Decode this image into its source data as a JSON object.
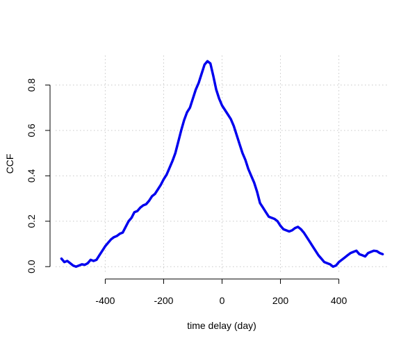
{
  "chart_data": {
    "type": "line",
    "title": "",
    "xlabel": "time delay (day)",
    "ylabel": "CCF",
    "xlim": [
      -570,
      570
    ],
    "ylim": [
      -0.03,
      0.93
    ],
    "x_ticks": [
      -400,
      -200,
      0,
      200,
      400
    ],
    "x_tick_labels": [
      "-400",
      "-200",
      "0",
      "200",
      "400"
    ],
    "y_ticks": [
      0.0,
      0.2,
      0.4,
      0.6,
      0.8
    ],
    "y_tick_labels": [
      "0.0",
      "0.2",
      "0.4",
      "0.6",
      "0.8"
    ],
    "grid": true,
    "series": [
      {
        "color": "#0000ee",
        "x": [
          -550,
          -540,
          -530,
          -520,
          -510,
          -500,
          -490,
          -480,
          -470,
          -460,
          -450,
          -440,
          -430,
          -420,
          -410,
          -400,
          -390,
          -380,
          -370,
          -360,
          -350,
          -340,
          -330,
          -320,
          -310,
          -300,
          -290,
          -280,
          -270,
          -260,
          -250,
          -240,
          -230,
          -220,
          -210,
          -200,
          -190,
          -180,
          -170,
          -160,
          -150,
          -140,
          -130,
          -120,
          -110,
          -100,
          -90,
          -80,
          -70,
          -60,
          -50,
          -40,
          -30,
          -20,
          -10,
          0,
          10,
          20,
          30,
          40,
          50,
          60,
          70,
          80,
          90,
          100,
          110,
          120,
          130,
          140,
          150,
          160,
          170,
          180,
          190,
          200,
          210,
          220,
          230,
          240,
          250,
          260,
          270,
          280,
          290,
          300,
          310,
          320,
          330,
          340,
          350,
          360,
          370,
          380,
          390,
          400,
          410,
          420,
          430,
          440,
          450,
          460,
          470,
          480,
          490,
          500,
          510,
          520,
          530,
          540,
          550
        ],
        "y": [
          0.035,
          0.02,
          0.025,
          0.015,
          0.005,
          0.0,
          0.005,
          0.01,
          0.008,
          0.015,
          0.03,
          0.025,
          0.03,
          0.05,
          0.07,
          0.09,
          0.105,
          0.12,
          0.13,
          0.135,
          0.145,
          0.15,
          0.175,
          0.2,
          0.215,
          0.24,
          0.245,
          0.26,
          0.27,
          0.275,
          0.29,
          0.31,
          0.32,
          0.34,
          0.36,
          0.385,
          0.405,
          0.435,
          0.465,
          0.5,
          0.55,
          0.6,
          0.645,
          0.68,
          0.7,
          0.74,
          0.78,
          0.81,
          0.85,
          0.89,
          0.905,
          0.895,
          0.84,
          0.78,
          0.74,
          0.71,
          0.69,
          0.67,
          0.65,
          0.62,
          0.58,
          0.54,
          0.5,
          0.47,
          0.43,
          0.4,
          0.37,
          0.33,
          0.28,
          0.26,
          0.24,
          0.22,
          0.215,
          0.21,
          0.2,
          0.18,
          0.165,
          0.16,
          0.155,
          0.16,
          0.17,
          0.175,
          0.165,
          0.15,
          0.13,
          0.11,
          0.09,
          0.07,
          0.05,
          0.035,
          0.02,
          0.015,
          0.01,
          0.0,
          0.005,
          0.02,
          0.03,
          0.04,
          0.05,
          0.06,
          0.065,
          0.07,
          0.055,
          0.05,
          0.045,
          0.06,
          0.065,
          0.07,
          0.068,
          0.06,
          0.055
        ]
      }
    ]
  }
}
